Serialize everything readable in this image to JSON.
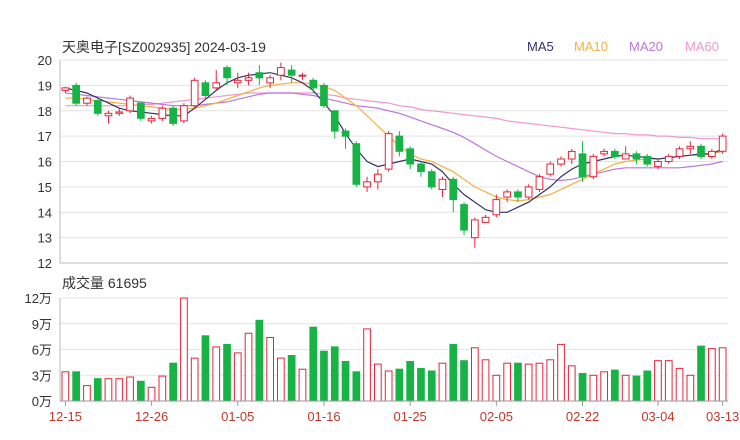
{
  "chart_data": [
    {
      "type": "candlestick",
      "title": "天奥电子[SZ002935] 2024-03-19",
      "ylim": [
        12,
        20
      ],
      "y_ticks": [
        "20",
        "19",
        "18",
        "17",
        "16",
        "15",
        "14",
        "13",
        "12"
      ],
      "legend_position": "top-right",
      "legend": [
        {
          "name": "MA5",
          "color": "#333366"
        },
        {
          "name": "MA10",
          "color": "#f5b041"
        },
        {
          "name": "MA20",
          "color": "#bb77dd"
        },
        {
          "name": "MA60",
          "color": "#ee99cc"
        }
      ],
      "up_color": "#e5253a",
      "down_color": "#17b345",
      "ohlc": [
        [
          18.8,
          18.9,
          18.7,
          18.95
        ],
        [
          19.0,
          18.3,
          18.2,
          19.1
        ],
        [
          18.3,
          18.5,
          18.2,
          18.55
        ],
        [
          18.4,
          17.9,
          17.8,
          18.45
        ],
        [
          17.8,
          17.9,
          17.5,
          18.0
        ],
        [
          17.9,
          17.95,
          17.8,
          18.1
        ],
        [
          18.0,
          18.5,
          17.9,
          18.6
        ],
        [
          18.3,
          17.7,
          17.6,
          18.35
        ],
        [
          17.6,
          17.7,
          17.5,
          17.8
        ],
        [
          17.7,
          18.1,
          17.6,
          18.2
        ],
        [
          18.1,
          17.5,
          17.4,
          18.2
        ],
        [
          17.6,
          18.2,
          17.5,
          18.3
        ],
        [
          18.2,
          19.2,
          18.1,
          19.3
        ],
        [
          19.1,
          18.6,
          18.5,
          19.2
        ],
        [
          18.9,
          19.1,
          18.8,
          19.6
        ],
        [
          19.7,
          19.3,
          19.0,
          19.8
        ],
        [
          19.1,
          19.2,
          18.9,
          19.5
        ],
        [
          19.2,
          19.3,
          19.0,
          19.5
        ],
        [
          19.5,
          19.3,
          19.0,
          19.8
        ],
        [
          19.1,
          19.3,
          18.9,
          19.4
        ],
        [
          19.4,
          19.7,
          19.2,
          19.9
        ],
        [
          19.6,
          19.4,
          19.1,
          19.8
        ],
        [
          19.4,
          19.4,
          19.2,
          19.5
        ],
        [
          19.2,
          18.9,
          18.7,
          19.3
        ],
        [
          19.0,
          18.2,
          18.1,
          19.1
        ],
        [
          18.0,
          17.2,
          16.9,
          18.0
        ],
        [
          17.2,
          17.0,
          16.5,
          17.3
        ],
        [
          16.7,
          15.1,
          15.0,
          16.8
        ],
        [
          15.0,
          15.2,
          14.8,
          15.4
        ],
        [
          15.2,
          15.5,
          14.9,
          15.7
        ],
        [
          15.7,
          17.1,
          15.6,
          17.2
        ],
        [
          17.0,
          16.4,
          16.2,
          17.2
        ],
        [
          16.5,
          15.9,
          15.7,
          16.6
        ],
        [
          15.9,
          15.6,
          15.4,
          16.0
        ],
        [
          15.6,
          15.0,
          14.9,
          15.7
        ],
        [
          14.9,
          15.3,
          14.6,
          15.4
        ],
        [
          15.3,
          14.5,
          14.0,
          15.4
        ],
        [
          14.3,
          13.3,
          13.1,
          14.4
        ],
        [
          13.0,
          13.7,
          12.6,
          13.8
        ],
        [
          13.6,
          13.8,
          13.6,
          13.9
        ],
        [
          13.9,
          14.5,
          13.8,
          14.7
        ],
        [
          14.6,
          14.8,
          14.4,
          14.9
        ],
        [
          14.8,
          14.6,
          14.4,
          14.9
        ],
        [
          14.6,
          15.0,
          14.5,
          15.1
        ],
        [
          14.9,
          15.4,
          14.8,
          15.5
        ],
        [
          15.5,
          15.9,
          15.4,
          16.0
        ],
        [
          15.9,
          16.1,
          15.8,
          16.2
        ],
        [
          16.1,
          16.4,
          15.9,
          16.5
        ],
        [
          16.3,
          15.4,
          15.2,
          16.8
        ],
        [
          15.4,
          16.2,
          15.3,
          16.3
        ],
        [
          16.3,
          16.4,
          16.2,
          16.5
        ],
        [
          16.4,
          16.2,
          16.1,
          16.5
        ],
        [
          16.1,
          16.3,
          16.1,
          16.6
        ],
        [
          16.3,
          16.1,
          15.9,
          16.4
        ],
        [
          16.2,
          15.9,
          15.8,
          16.3
        ],
        [
          15.8,
          16.0,
          15.7,
          16.1
        ],
        [
          16.0,
          16.2,
          15.9,
          16.3
        ],
        [
          16.2,
          16.5,
          16.1,
          16.6
        ],
        [
          16.5,
          16.6,
          16.3,
          16.8
        ],
        [
          16.6,
          16.2,
          16.1,
          16.7
        ],
        [
          16.2,
          16.4,
          16.1,
          16.5
        ],
        [
          16.4,
          17.0,
          16.3,
          17.1
        ]
      ],
      "ma5": [
        18.9,
        18.8,
        18.7,
        18.5,
        18.3,
        18.1,
        18.0,
        17.95,
        17.9,
        17.85,
        17.8,
        17.8,
        18.1,
        18.45,
        18.8,
        19.1,
        19.3,
        19.4,
        19.45,
        19.5,
        19.4,
        19.3,
        19.1,
        18.8,
        18.3,
        17.8,
        17.1,
        16.5,
        16.0,
        15.8,
        15.9,
        16.0,
        16.1,
        16.0,
        15.9,
        15.6,
        15.1,
        14.7,
        14.4,
        14.1,
        14.0,
        14.0,
        14.2,
        14.4,
        14.7,
        15.0,
        15.4,
        15.7,
        15.9,
        16.0,
        16.1,
        16.2,
        16.25,
        16.2,
        16.15,
        16.1,
        16.15,
        16.2,
        16.25,
        16.3,
        16.3,
        16.5
      ],
      "ma10": [
        18.5,
        18.5,
        18.45,
        18.4,
        18.35,
        18.3,
        18.25,
        18.2,
        18.15,
        18.1,
        18.05,
        18.05,
        18.1,
        18.2,
        18.3,
        18.45,
        18.6,
        18.75,
        18.9,
        19.0,
        19.05,
        19.1,
        19.1,
        19.05,
        18.95,
        18.8,
        18.5,
        18.2,
        17.8,
        17.4,
        17.0,
        16.6,
        16.3,
        16.1,
        16.0,
        15.8,
        15.6,
        15.3,
        15.0,
        14.8,
        14.6,
        14.5,
        14.45,
        14.5,
        14.6,
        14.7,
        14.9,
        15.1,
        15.3,
        15.5,
        15.7,
        15.9,
        16.0,
        16.05,
        16.1,
        16.1,
        16.15,
        16.2,
        16.25,
        16.25,
        16.3,
        16.4
      ],
      "ma20": [
        18.7,
        18.65,
        18.6,
        18.55,
        18.5,
        18.45,
        18.4,
        18.35,
        18.3,
        18.25,
        18.2,
        18.2,
        18.2,
        18.25,
        18.3,
        18.35,
        18.45,
        18.55,
        18.65,
        18.7,
        18.7,
        18.7,
        18.65,
        18.6,
        18.5,
        18.4,
        18.3,
        18.2,
        18.15,
        18.1,
        18.0,
        17.9,
        17.75,
        17.6,
        17.45,
        17.3,
        17.15,
        16.95,
        16.7,
        16.45,
        16.2,
        16.0,
        15.8,
        15.6,
        15.4,
        15.3,
        15.25,
        15.3,
        15.4,
        15.5,
        15.6,
        15.7,
        15.75,
        15.75,
        15.75,
        15.75,
        15.75,
        15.75,
        15.8,
        15.85,
        15.9,
        16.0
      ],
      "ma60": [
        18.2,
        18.2,
        18.2,
        18.2,
        18.2,
        18.2,
        18.2,
        18.25,
        18.25,
        18.3,
        18.35,
        18.4,
        18.45,
        18.5,
        18.55,
        18.6,
        18.65,
        18.7,
        18.7,
        18.7,
        18.7,
        18.7,
        18.7,
        18.7,
        18.65,
        18.6,
        18.5,
        18.45,
        18.4,
        18.35,
        18.3,
        18.2,
        18.15,
        18.05,
        18.0,
        17.95,
        17.9,
        17.85,
        17.8,
        17.75,
        17.7,
        17.6,
        17.55,
        17.5,
        17.45,
        17.4,
        17.35,
        17.3,
        17.25,
        17.2,
        17.15,
        17.1,
        17.1,
        17.05,
        17.05,
        17.0,
        17.0,
        16.95,
        16.95,
        16.9,
        16.9,
        16.9
      ]
    },
    {
      "type": "bar",
      "title": "成交量 61695",
      "ylim": [
        0,
        120000
      ],
      "y_ticks": [
        "12万",
        "9万",
        "6万",
        "3万",
        "0万"
      ],
      "x_ticks": [
        "12-15",
        "12-26",
        "01-05",
        "01-16",
        "01-25",
        "02-05",
        "02-22",
        "03-04",
        "03-13"
      ],
      "x_tick_index": [
        0,
        8,
        16,
        24,
        32,
        40,
        48,
        55,
        61
      ],
      "volume": [
        34000,
        34000,
        18000,
        26000,
        26000,
        26000,
        28000,
        23000,
        16000,
        29000,
        44000,
        120000,
        50000,
        76000,
        63000,
        66000,
        56000,
        79000,
        94000,
        74000,
        50000,
        53000,
        37000,
        86000,
        58000,
        63000,
        46000,
        34000,
        84000,
        43000,
        35000,
        37000,
        46000,
        38000,
        35000,
        44000,
        66000,
        47000,
        62000,
        48000,
        30000,
        44000,
        44000,
        43000,
        44000,
        48000,
        66000,
        41000,
        32000,
        30000,
        34000,
        36000,
        30000,
        29000,
        35000,
        47000,
        47000,
        38000,
        30000,
        64000,
        61000,
        62000
      ]
    }
  ]
}
